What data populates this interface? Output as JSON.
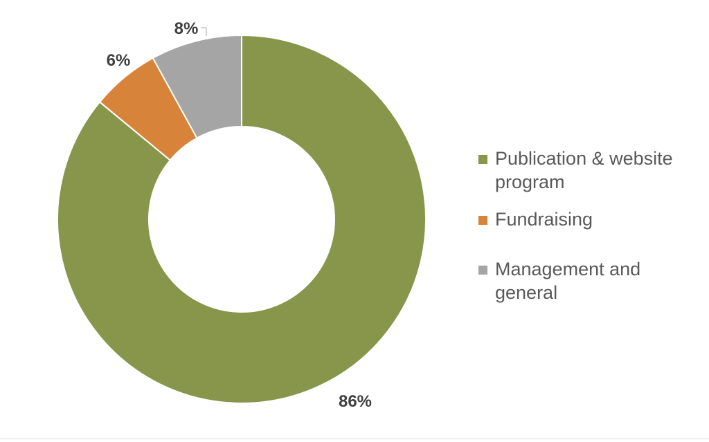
{
  "chart_data": {
    "type": "pie",
    "variant": "donut",
    "categories": [
      "Publication & website program",
      "Fundraising",
      "Management and general"
    ],
    "values": [
      86,
      6,
      8
    ],
    "labels": [
      "86%",
      "6%",
      "8%"
    ],
    "colors": [
      "#87964a",
      "#d7843a",
      "#a5a5a5"
    ],
    "legend_position": "right",
    "title": ""
  }
}
